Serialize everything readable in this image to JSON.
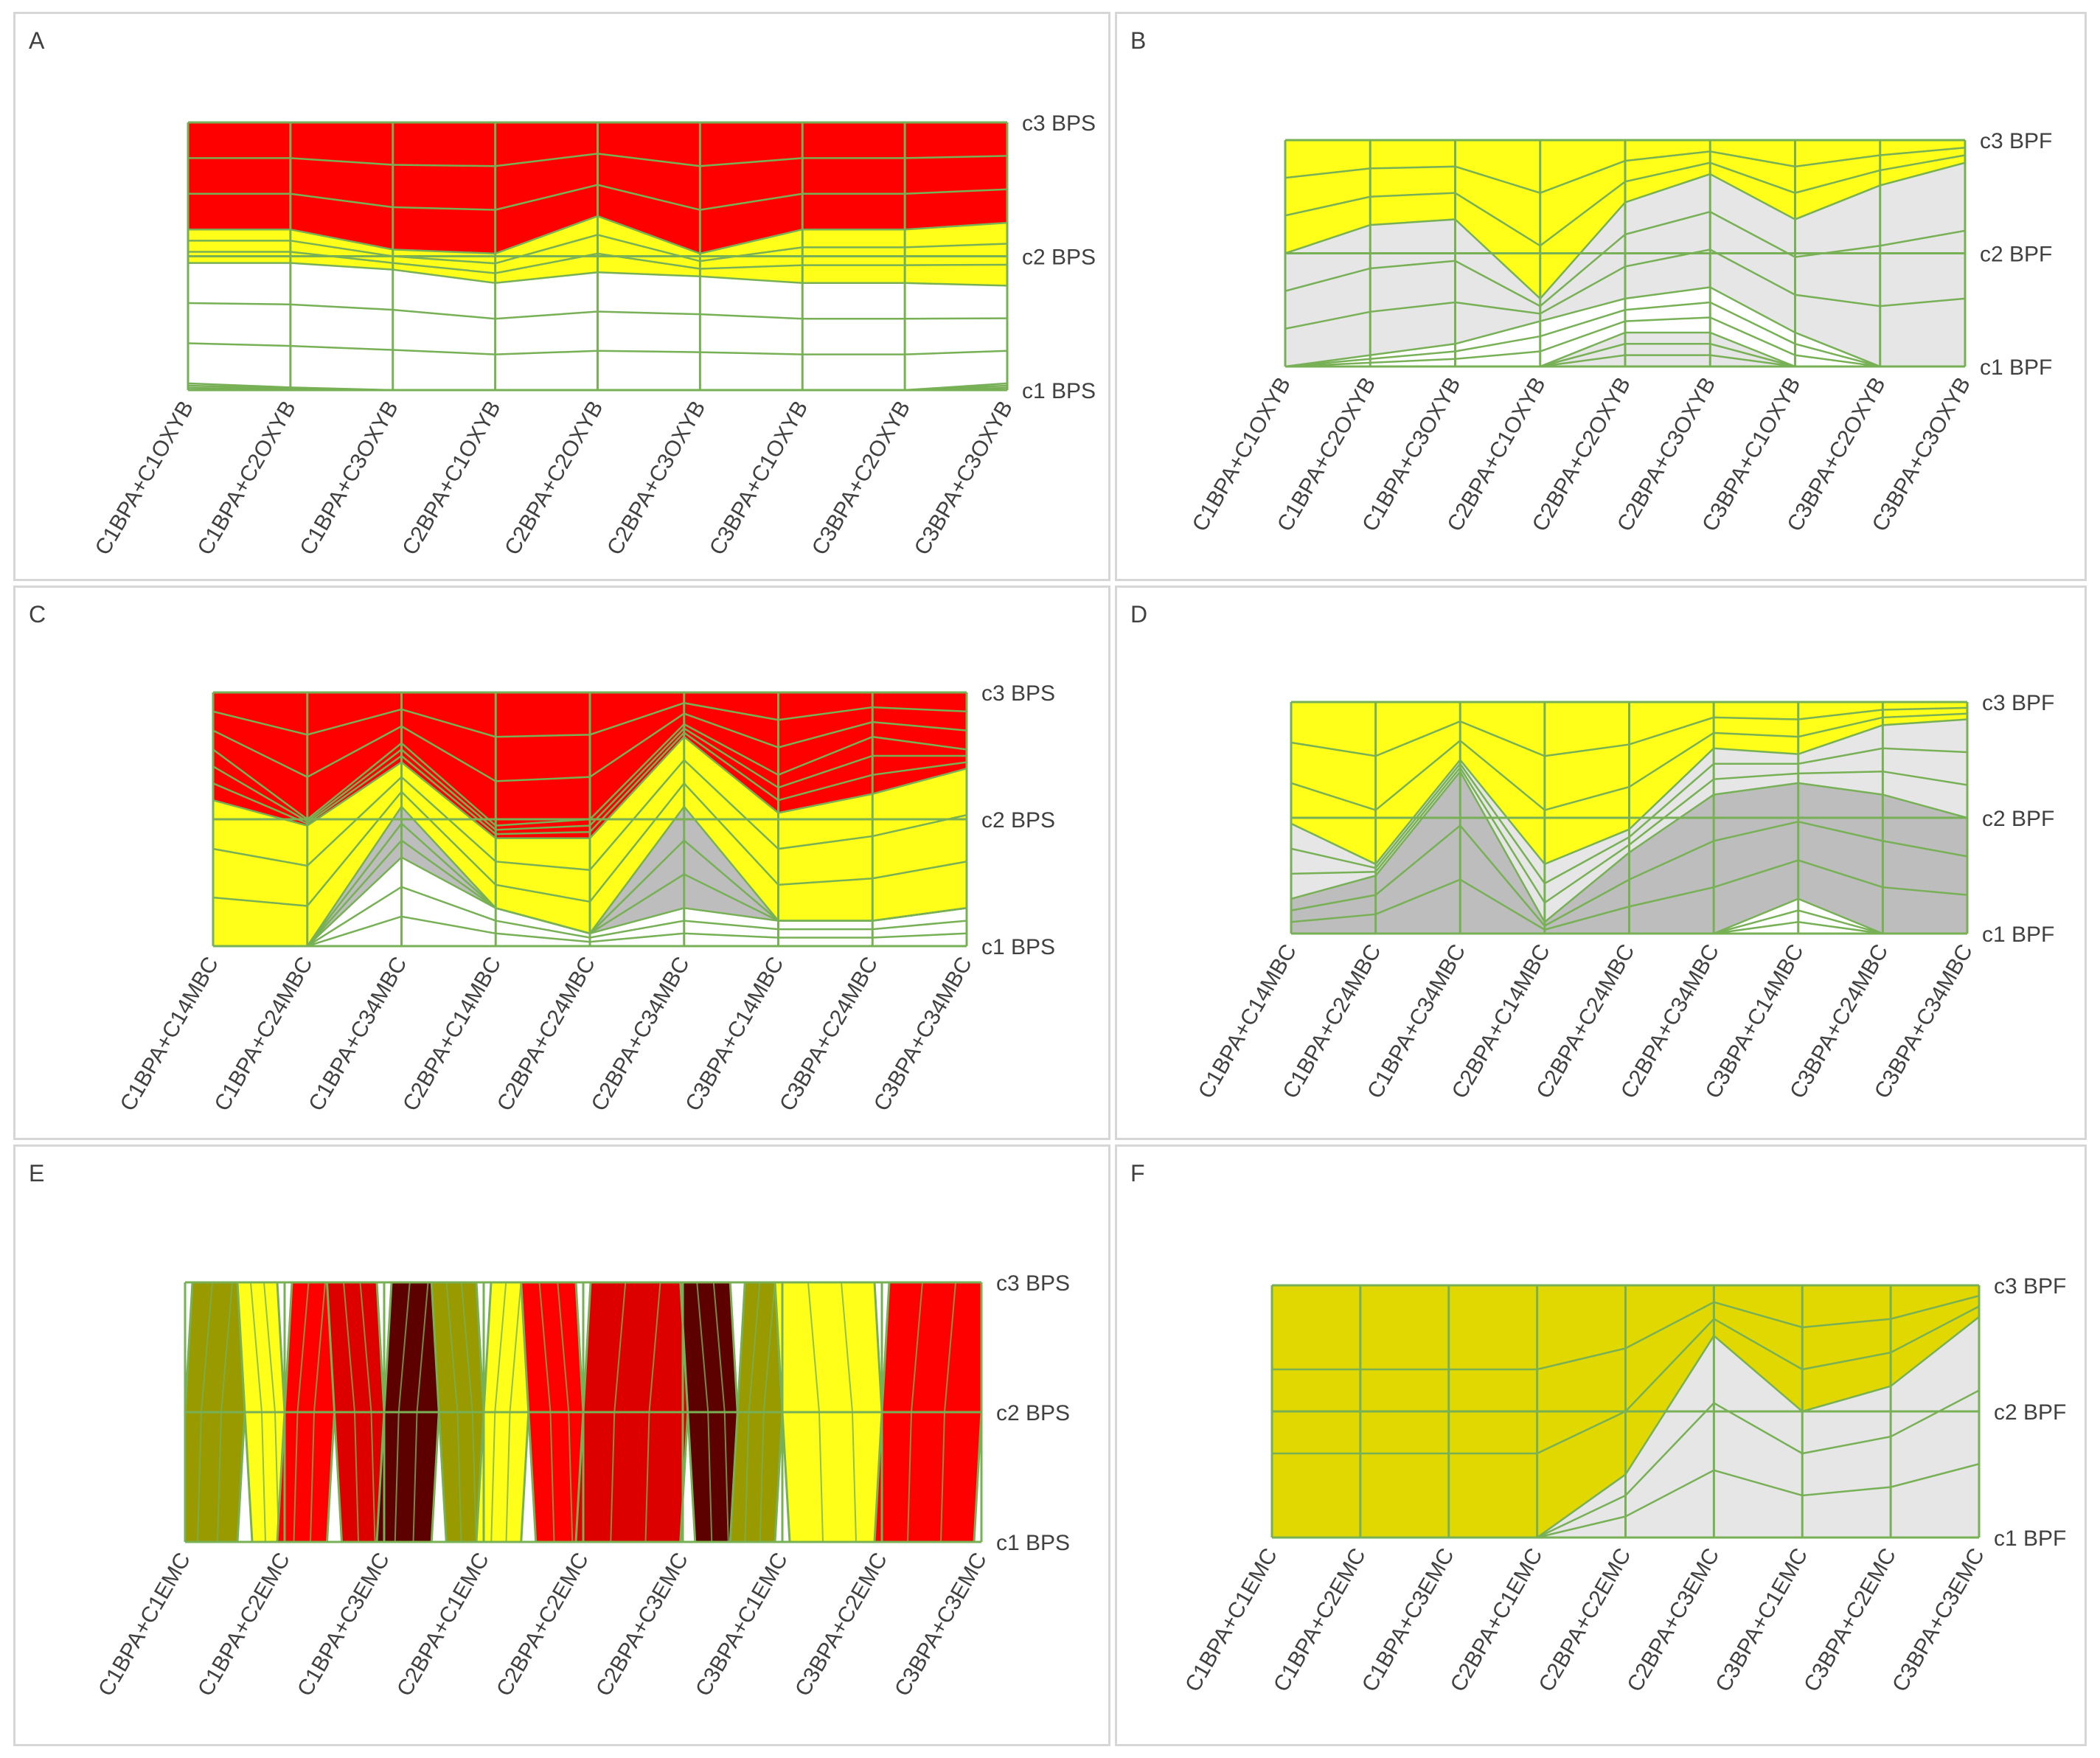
{
  "colors": {
    "red": "#ff0000",
    "dark_red": "#dd0000",
    "maroon": "#5c0000",
    "yellow": "#ffff1a",
    "olive_yellow": "#e0d800",
    "olive": "#999900",
    "light_grey": "#e6e6e6",
    "grey": "#bdbdbd",
    "dark_grey": "#999999",
    "white": "#ffffff",
    "grid": "#77b055"
  },
  "chart_data": [
    {
      "id": "A",
      "type": "surface-contour",
      "y_labels": [
        "c1 BPS",
        "c2 BPS",
        "c3 BPS"
      ],
      "categories": [
        "C1BPA+C1OXYB",
        "C1BPA+C2OXYB",
        "C1BPA+C3OXYB",
        "C2BPA+C1OXYB",
        "C2BPA+C2OXYB",
        "C2BPA+C3OXYB",
        "C3BPA+C1OXYB",
        "C3BPA+C2OXYB",
        "C3BPA+C3OXYB"
      ],
      "band_legend": [
        "light_grey",
        "white",
        "yellow",
        "red"
      ],
      "boundaries": [
        [
          0.05,
          0.02,
          0.0,
          0.0,
          0.0,
          0.0,
          0.0,
          0.0,
          0.05
        ],
        [
          0.95,
          0.95,
          0.9,
          0.8,
          0.88,
          0.85,
          0.8,
          0.8,
          0.78
        ],
        [
          1.2,
          1.2,
          1.05,
          1.02,
          1.3,
          1.02,
          1.2,
          1.2,
          1.25
        ]
      ]
    },
    {
      "id": "B",
      "type": "surface-contour",
      "y_labels": [
        "c1 BPF",
        "c2 BPF",
        "c3 BPF"
      ],
      "categories": [
        "C1BPA+C1OXYB",
        "C1BPA+C2OXYB",
        "C1BPA+C3OXYB",
        "C2BPA+C1OXYB",
        "C2BPA+C2OXYB",
        "C2BPA+C3OXYB",
        "C3BPA+C1OXYB",
        "C3BPA+C2OXYB",
        "C3BPA+C3OXYB"
      ],
      "band_legend": [
        "light_grey",
        "white",
        "light_grey",
        "yellow"
      ],
      "boundaries": [
        [
          0.0,
          0.0,
          0.0,
          0.0,
          0.3,
          0.3,
          0.0,
          0.0,
          0.0
        ],
        [
          0.0,
          0.1,
          0.2,
          0.4,
          0.6,
          0.7,
          0.3,
          0.0,
          0.0
        ],
        [
          1.0,
          1.25,
          1.3,
          0.6,
          1.45,
          1.7,
          1.3,
          1.6,
          1.8
        ]
      ]
    },
    {
      "id": "C",
      "type": "surface-contour",
      "y_labels": [
        "c1 BPS",
        "c2 BPS",
        "c3 BPS"
      ],
      "categories": [
        "C1BPA+C14MBC",
        "C1BPA+C24MBC",
        "C1BPA+C34MBC",
        "C2BPA+C14MBC",
        "C2BPA+C24MBC",
        "C2BPA+C34MBC",
        "C3BPA+C14MBC",
        "C3BPA+C24MBC",
        "C3BPA+C34MBC"
      ],
      "band_legend": [
        "white",
        "grey",
        "yellow",
        "red"
      ],
      "boundaries": [
        [
          0.0,
          0.0,
          0.7,
          0.3,
          0.1,
          0.3,
          0.2,
          0.2,
          0.3
        ],
        [
          0.0,
          0.0,
          1.1,
          0.3,
          0.1,
          1.1,
          0.2,
          0.2,
          0.3
        ],
        [
          1.15,
          0.95,
          1.45,
          0.85,
          0.85,
          1.65,
          1.05,
          1.2,
          1.4
        ],
        [
          1.55,
          1.0,
          1.6,
          0.95,
          1.0,
          1.75,
          1.35,
          1.65,
          1.55
        ]
      ]
    },
    {
      "id": "D",
      "type": "surface-contour",
      "y_labels": [
        "c1 BPF",
        "c2 BPF",
        "c3 BPF"
      ],
      "categories": [
        "C1BPA+C14MBC",
        "C1BPA+C24MBC",
        "C1BPA+C34MBC",
        "C2BPA+C14MBC",
        "C2BPA+C24MBC",
        "C2BPA+C34MBC",
        "C3BPA+C14MBC",
        "C3BPA+C24MBC",
        "C3BPA+C34MBC"
      ],
      "band_legend": [
        "white",
        "grey",
        "light_grey",
        "yellow"
      ],
      "boundaries": [
        [
          0.0,
          0.0,
          0.0,
          0.0,
          0.0,
          0.0,
          0.3,
          0.0,
          0.0
        ],
        [
          0.3,
          0.5,
          1.4,
          0.1,
          0.7,
          1.2,
          1.3,
          1.2,
          1.0
        ],
        [
          0.95,
          0.6,
          1.5,
          0.6,
          0.9,
          1.6,
          1.55,
          1.8,
          1.85
        ]
      ]
    },
    {
      "id": "E",
      "type": "surface-contour",
      "y_labels": [
        "c1 BPS",
        "c2 BPS",
        "c3 BPS"
      ],
      "categories": [
        "C1BPA+C1EMC",
        "C1BPA+C2EMC",
        "C1BPA+C3EMC",
        "C2BPA+C1EMC",
        "C2BPA+C2EMC",
        "C2BPA+C3EMC",
        "C3BPA+C1EMC",
        "C3BPA+C2EMC",
        "C3BPA+C3EMC"
      ],
      "orientation": "vertical-bands",
      "band_legend": [
        "olive",
        "yellow",
        "red",
        "dark_red",
        "maroon",
        "olive",
        "yellow",
        "red",
        "dark_red",
        "maroon",
        "olive",
        "yellow",
        "red"
      ],
      "band_x_positions": [
        0.0,
        0.6,
        1.0,
        1.5,
        2.0,
        2.55,
        3.0,
        3.45,
        4.0,
        5.05,
        5.55,
        6.0,
        7.0,
        8.0
      ]
    },
    {
      "id": "F",
      "type": "surface-contour",
      "y_labels": [
        "c1 BPF",
        "c2 BPF",
        "c3 BPF"
      ],
      "categories": [
        "C1BPA+C1EMC",
        "C1BPA+C2EMC",
        "C1BPA+C3EMC",
        "C2BPA+C1EMC",
        "C2BPA+C2EMC",
        "C2BPA+C3EMC",
        "C3BPA+C1EMC",
        "C3BPA+C2EMC",
        "C3BPA+C3EMC"
      ],
      "band_legend": [
        "light_grey",
        "olive_yellow"
      ],
      "boundaries": [
        [
          0.0,
          0.0,
          0.0,
          0.0,
          0.5,
          1.6,
          1.0,
          1.2,
          1.75
        ]
      ]
    }
  ]
}
